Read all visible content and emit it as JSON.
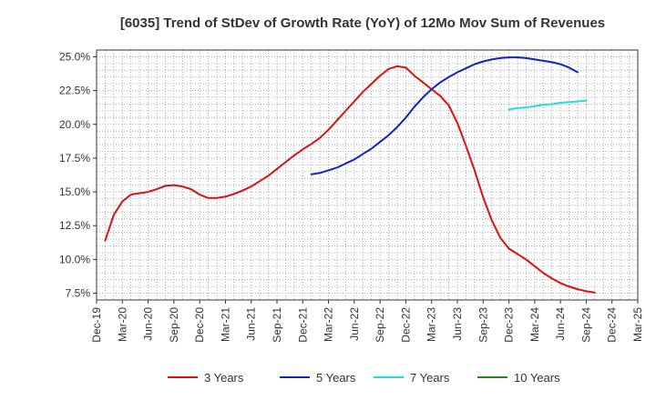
{
  "chart_data": {
    "type": "line",
    "title": "[6035]  Trend of StDev of Growth Rate (YoY) of 12Mo Mov Sum of Revenues",
    "xlabel": "",
    "ylabel": "",
    "ylim": [
      7.0,
      25.5
    ],
    "grid": true,
    "legend_position": "bottom",
    "x_ticks": [
      "Dec-19",
      "Mar-20",
      "Jun-20",
      "Sep-20",
      "Dec-20",
      "Mar-21",
      "Jun-21",
      "Sep-21",
      "Dec-21",
      "Mar-22",
      "Jun-22",
      "Sep-22",
      "Dec-22",
      "Mar-23",
      "Jun-23",
      "Sep-23",
      "Dec-23",
      "Mar-24",
      "Jun-24",
      "Sep-24",
      "Dec-24",
      "Mar-25"
    ],
    "y_ticks": [
      {
        "value": 7.5,
        "label": "7.5%"
      },
      {
        "value": 10.0,
        "label": "10.0%"
      },
      {
        "value": 12.5,
        "label": "12.5%"
      },
      {
        "value": 15.0,
        "label": "15.0%"
      },
      {
        "value": 17.5,
        "label": "17.5%"
      },
      {
        "value": 20.0,
        "label": "20.0%"
      },
      {
        "value": 22.5,
        "label": "22.5%"
      },
      {
        "value": 25.0,
        "label": "25.0%"
      }
    ],
    "series": [
      {
        "name": "3 Years",
        "color": "#dd1111",
        "start_month_index": 1,
        "values": [
          11.4,
          13.3,
          14.3,
          14.8,
          14.9,
          15.0,
          15.2,
          15.45,
          15.5,
          15.4,
          15.2,
          14.8,
          14.55,
          14.55,
          14.65,
          14.85,
          15.1,
          15.4,
          15.8,
          16.2,
          16.7,
          17.2,
          17.7,
          18.15,
          18.55,
          19.0,
          19.6,
          20.3,
          21.0,
          21.7,
          22.4,
          23.0,
          23.6,
          24.1,
          24.3,
          24.2,
          23.6,
          23.1,
          22.6,
          22.1,
          21.4,
          20.1,
          18.4,
          16.6,
          14.6,
          12.9,
          11.6,
          10.8,
          10.4,
          10.0,
          9.5,
          9.0,
          8.6,
          8.25,
          8.0,
          7.8,
          7.65,
          7.55
        ]
      },
      {
        "name": "5 Years",
        "color": "#1122cc",
        "start_month_index": 25,
        "values": [
          16.3,
          16.4,
          16.6,
          16.8,
          17.1,
          17.4,
          17.8,
          18.2,
          18.7,
          19.2,
          19.8,
          20.5,
          21.3,
          22.0,
          22.6,
          23.1,
          23.5,
          23.85,
          24.15,
          24.45,
          24.65,
          24.8,
          24.9,
          24.95,
          24.95,
          24.9,
          24.8,
          24.7,
          24.6,
          24.45,
          24.2,
          23.85
        ]
      },
      {
        "name": "7 Years",
        "color": "#22dddd",
        "start_month_index": 48,
        "values": [
          21.1,
          21.2,
          21.25,
          21.35,
          21.45,
          21.5,
          21.6,
          21.65,
          21.7,
          21.75
        ]
      },
      {
        "name": "10 Years",
        "color": "#228822",
        "start_month_index": 0,
        "values": []
      }
    ]
  }
}
